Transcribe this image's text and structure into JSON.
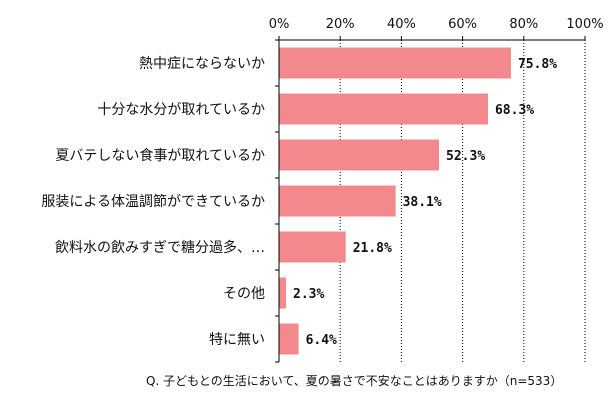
{
  "chart_data": {
    "type": "bar",
    "orientation": "horizontal",
    "categories": [
      "熱中症にならないか",
      "十分な水分が取れているか",
      "夏バテしない食事が取れているか",
      "服装による体温調節ができているか",
      "飲料水の飲みすぎで糖分過多、…",
      "その他",
      "特に無い"
    ],
    "values": [
      75.8,
      68.3,
      52.3,
      38.1,
      21.8,
      2.3,
      6.4
    ],
    "data_labels": [
      "75.8%",
      "68.3%",
      "52.3%",
      "38.1%",
      "21.8%",
      "2.3%",
      "6.4%"
    ],
    "xlim": [
      0,
      100
    ],
    "x_ticks": [
      0,
      20,
      40,
      60,
      80,
      100
    ],
    "x_tick_labels": [
      "0%",
      "20%",
      "40%",
      "60%",
      "80%",
      "100%"
    ],
    "axis_position": "top",
    "grid": true,
    "legend": "none",
    "bar_color": "#f4898d",
    "axis_color": "#000000",
    "grid_color": "#000000"
  },
  "note": "Q. 子どもとの生活において、夏の暑さで不安なことはありますか（n=533）"
}
